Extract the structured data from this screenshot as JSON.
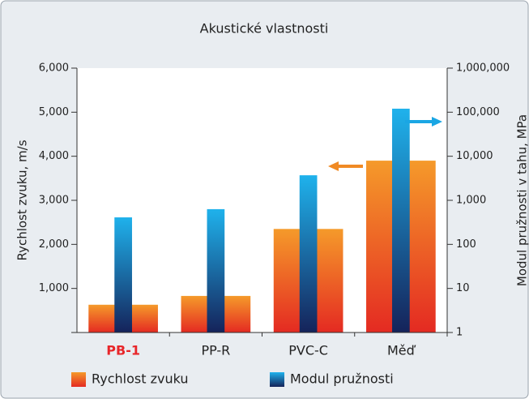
{
  "chart_data": {
    "type": "bar",
    "title": "Akustické vlastnosti",
    "y_label": "Rychlost zvuku, m/s",
    "y2_label": "Modul pružnosti v tahu, MPa",
    "categories": [
      "PB-1",
      "PP-R",
      "PVC-C",
      "Měď"
    ],
    "category_colors": [
      "#e8262a",
      "#222222",
      "#222222",
      "#222222"
    ],
    "series": [
      {
        "name": "Rychlost zvuku",
        "color": "#f59a2a",
        "values": [
          630,
          830,
          2350,
          3900
        ]
      },
      {
        "name": "Modul pružnosti",
        "color": "#1fb2ec",
        "values": [
          410,
          630,
          3700,
          120000
        ],
        "axis": "y2"
      }
    ],
    "ylim": [
      0,
      6000
    ],
    "yticks": [
      {
        "value": 1000,
        "label": "1,000"
      },
      {
        "value": 2000,
        "label": "2,000"
      },
      {
        "value": 3000,
        "label": "3,000"
      },
      {
        "value": 4000,
        "label": "4,000"
      },
      {
        "value": 5000,
        "label": "5,000"
      },
      {
        "value": 6000,
        "label": "6,000"
      }
    ],
    "y2lim": [
      1,
      1000000
    ],
    "y2scale": "log",
    "y2ticks": [
      1,
      10,
      100,
      {
        "value": 1000,
        "label": "1,000"
      },
      {
        "value": 10000,
        "label": "10,000"
      },
      {
        "value": 100000,
        "label": "100,000"
      },
      {
        "value": 1000000,
        "label": "1,000,000"
      }
    ]
  }
}
